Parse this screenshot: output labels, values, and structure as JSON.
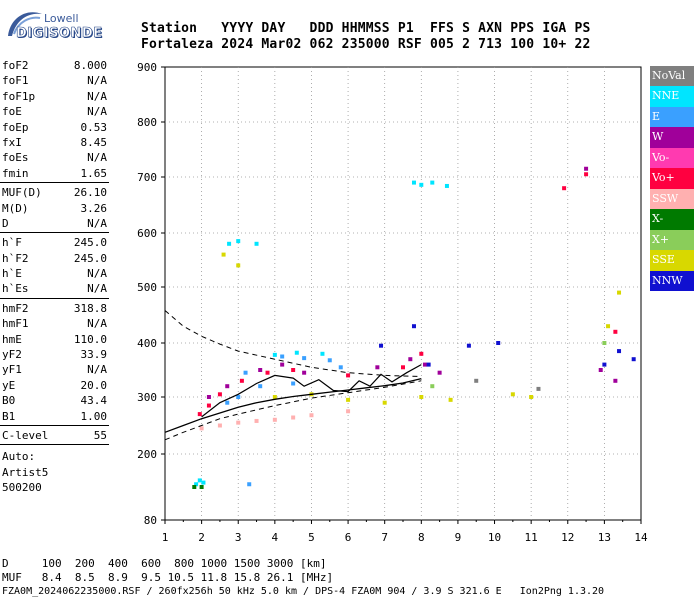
{
  "logo": {
    "brand": "Lowell",
    "name": "DIGISONDE"
  },
  "header": {
    "line1": "Station   YYYY DAY   DDD HHMMSS P1  FFS S AXN PPS IGA PS",
    "line2": "Fortaleza 2024 Mar02 062 235000 RSF 005 2 713 100 10+ 22"
  },
  "params": {
    "group1": [
      {
        "key": "foF2",
        "value": "8.000"
      },
      {
        "key": "foF1",
        "value": "N/A"
      },
      {
        "key": "foF1p",
        "value": "N/A"
      },
      {
        "key": "foE",
        "value": "N/A"
      },
      {
        "key": "foEp",
        "value": "0.53"
      },
      {
        "key": "fxI",
        "value": "8.45"
      },
      {
        "key": "foEs",
        "value": "N/A"
      },
      {
        "key": "fmin",
        "value": "1.65"
      }
    ],
    "group2": [
      {
        "key": "MUF(D)",
        "value": "26.10"
      },
      {
        "key": "M(D)",
        "value": "3.26"
      },
      {
        "key": "D",
        "value": "N/A"
      }
    ],
    "group3": [
      {
        "key": "h`F",
        "value": "245.0"
      },
      {
        "key": "h`F2",
        "value": "245.0"
      },
      {
        "key": "h`E",
        "value": "N/A"
      },
      {
        "key": "h`Es",
        "value": "N/A"
      }
    ],
    "group4": [
      {
        "key": "hmF2",
        "value": "318.8"
      },
      {
        "key": "hmF1",
        "value": "N/A"
      },
      {
        "key": "hmE",
        "value": "110.0"
      },
      {
        "key": "yF2",
        "value": "33.9"
      },
      {
        "key": "yF1",
        "value": "N/A"
      },
      {
        "key": "yE",
        "value": "20.0"
      },
      {
        "key": "B0",
        "value": "43.4"
      },
      {
        "key": "B1",
        "value": "1.00"
      }
    ],
    "group5": [
      {
        "key": "C-level",
        "value": "55"
      }
    ]
  },
  "auto": {
    "line1": "Auto:",
    "line2": "Artist5",
    "line3": "500200"
  },
  "legend": [
    {
      "label": "NoVal",
      "color": "#7f7f7f"
    },
    {
      "label": "NNE",
      "color": "#00e5ff"
    },
    {
      "label": "E",
      "color": "#3aa0ff"
    },
    {
      "label": "W",
      "color": "#a0009a"
    },
    {
      "label": "Vo-",
      "color": "#ff3ab0"
    },
    {
      "label": "Vo+",
      "color": "#ff0040"
    },
    {
      "label": "SSW",
      "color": "#ffb0b0"
    },
    {
      "label": "X-",
      "color": "#007a00"
    },
    {
      "label": "X+",
      "color": "#8acd5a"
    },
    {
      "label": "SSE",
      "color": "#d8d800"
    },
    {
      "label": "NNW",
      "color": "#1010d0"
    }
  ],
  "footer": {
    "line1": "D     100  200  400  600  800 1000 1500 3000 [km]",
    "line2": "MUF   8.4  8.5  8.9  9.5 10.5 11.8 15.8 26.1 [MHz]",
    "line3": "FZA0M_2024062235000.RSF / 260fx256h 50 kHz 5.0 km / DPS-4 FZA0M 904 / 3.9 S 321.6 E   Ion2Png 1.3.20"
  },
  "chart_data": {
    "type": "scatter",
    "title": "",
    "xlabel": "",
    "ylabel": "",
    "xlim": [
      1,
      14
    ],
    "ylim": [
      80,
      900
    ],
    "x_ticks": [
      1,
      2,
      3,
      4,
      5,
      6,
      7,
      8,
      9,
      10,
      11,
      12,
      13,
      14
    ],
    "y_ticks": [
      80,
      200,
      300,
      400,
      500,
      600,
      700,
      800,
      900
    ],
    "grid": true,
    "legend_position": "right",
    "series": [
      {
        "name": "NNE",
        "points": [
          [
            1.95,
            152
          ],
          [
            1.85,
            145
          ],
          [
            2.05,
            148
          ],
          [
            7.8,
            690
          ],
          [
            8.0,
            686
          ],
          [
            8.3,
            690
          ],
          [
            8.7,
            684
          ],
          [
            2.75,
            580
          ],
          [
            3.0,
            585
          ],
          [
            3.5,
            580
          ],
          [
            4.0,
            378
          ],
          [
            4.6,
            382
          ],
          [
            5.3,
            380
          ]
        ]
      },
      {
        "name": "E",
        "points": [
          [
            4.2,
            375
          ],
          [
            4.8,
            372
          ],
          [
            5.5,
            368
          ],
          [
            3.2,
            345
          ],
          [
            3.6,
            320
          ],
          [
            3.0,
            300
          ],
          [
            2.7,
            290
          ],
          [
            4.5,
            325
          ],
          [
            5.8,
            355
          ],
          [
            3.3,
            145
          ]
        ]
      },
      {
        "name": "W",
        "points": [
          [
            2.2,
            300
          ],
          [
            2.7,
            320
          ],
          [
            3.6,
            350
          ],
          [
            4.2,
            360
          ],
          [
            4.8,
            345
          ],
          [
            6.8,
            355
          ],
          [
            7.7,
            370
          ],
          [
            8.1,
            360
          ],
          [
            8.5,
            345
          ],
          [
            12.9,
            350
          ],
          [
            13.3,
            330
          ],
          [
            12.5,
            715
          ]
        ]
      },
      {
        "name": "Vo+",
        "points": [
          [
            1.95,
            270
          ],
          [
            2.2,
            285
          ],
          [
            2.5,
            305
          ],
          [
            3.1,
            330
          ],
          [
            3.8,
            345
          ],
          [
            4.5,
            350
          ],
          [
            6.0,
            340
          ],
          [
            7.5,
            355
          ],
          [
            8.0,
            380
          ],
          [
            12.5,
            705
          ],
          [
            11.9,
            680
          ],
          [
            13.3,
            420
          ]
        ]
      },
      {
        "name": "SSW",
        "points": [
          [
            2.0,
            245
          ],
          [
            3.0,
            255
          ],
          [
            4.0,
            260
          ],
          [
            5.0,
            268
          ],
          [
            6.0,
            275
          ],
          [
            2.5,
            250
          ],
          [
            3.5,
            258
          ],
          [
            4.5,
            264
          ]
        ]
      },
      {
        "name": "SSE",
        "points": [
          [
            4.0,
            300
          ],
          [
            5.0,
            305
          ],
          [
            6.0,
            295
          ],
          [
            7.0,
            290
          ],
          [
            8.0,
            300
          ],
          [
            8.8,
            295
          ],
          [
            10.5,
            305
          ],
          [
            11.0,
            300
          ],
          [
            2.6,
            560
          ],
          [
            3.0,
            540
          ],
          [
            13.4,
            490
          ],
          [
            13.1,
            430
          ]
        ]
      },
      {
        "name": "NNW",
        "points": [
          [
            8.2,
            360
          ],
          [
            9.3,
            395
          ],
          [
            10.1,
            400
          ],
          [
            13.0,
            360
          ],
          [
            13.4,
            385
          ],
          [
            13.8,
            370
          ],
          [
            6.9,
            395
          ],
          [
            7.8,
            430
          ]
        ]
      },
      {
        "name": "X-",
        "points": [
          [
            1.8,
            140
          ],
          [
            2.0,
            140
          ]
        ]
      },
      {
        "name": "X+",
        "points": [
          [
            8.3,
            320
          ],
          [
            13.0,
            400
          ]
        ]
      },
      {
        "name": "NoVal",
        "points": [
          [
            9.5,
            330
          ],
          [
            11.2,
            315
          ]
        ]
      }
    ],
    "profile_curve": [
      [
        1.0,
        238
      ],
      [
        1.5,
        250
      ],
      [
        2.0,
        262
      ],
      [
        2.5,
        272
      ],
      [
        3.0,
        282
      ],
      [
        3.5,
        290
      ],
      [
        4.0,
        296
      ],
      [
        4.5,
        301
      ],
      [
        5.0,
        305
      ],
      [
        5.5,
        309
      ],
      [
        6.0,
        313
      ],
      [
        6.5,
        317
      ],
      [
        7.0,
        321
      ],
      [
        7.5,
        326
      ],
      [
        8.0,
        334
      ]
    ],
    "trace_curve": [
      [
        2.0,
        265
      ],
      [
        2.5,
        290
      ],
      [
        3.0,
        305
      ],
      [
        3.5,
        325
      ],
      [
        4.0,
        340
      ],
      [
        4.5,
        335
      ],
      [
        4.8,
        320
      ],
      [
        5.2,
        332
      ],
      [
        5.6,
        312
      ],
      [
        6.0,
        310
      ],
      [
        6.3,
        330
      ],
      [
        6.6,
        320
      ],
      [
        6.9,
        342
      ],
      [
        7.2,
        328
      ],
      [
        7.6,
        345
      ],
      [
        8.0,
        360
      ]
    ],
    "dashed_curve": [
      [
        1.0,
        458
      ],
      [
        1.5,
        430
      ],
      [
        2.0,
        412
      ],
      [
        2.5,
        398
      ],
      [
        3.0,
        385
      ],
      [
        4.0,
        370
      ],
      [
        5.0,
        355
      ],
      [
        6.0,
        345
      ],
      [
        7.0,
        340
      ],
      [
        8.0,
        338
      ]
    ],
    "dashed_curve2": [
      [
        1.0,
        225
      ],
      [
        1.5,
        238
      ],
      [
        2.0,
        250
      ],
      [
        2.5,
        262
      ],
      [
        3.0,
        270
      ],
      [
        4.0,
        285
      ],
      [
        5.0,
        298
      ],
      [
        6.0,
        308
      ],
      [
        7.0,
        318
      ],
      [
        8.0,
        330
      ]
    ]
  }
}
